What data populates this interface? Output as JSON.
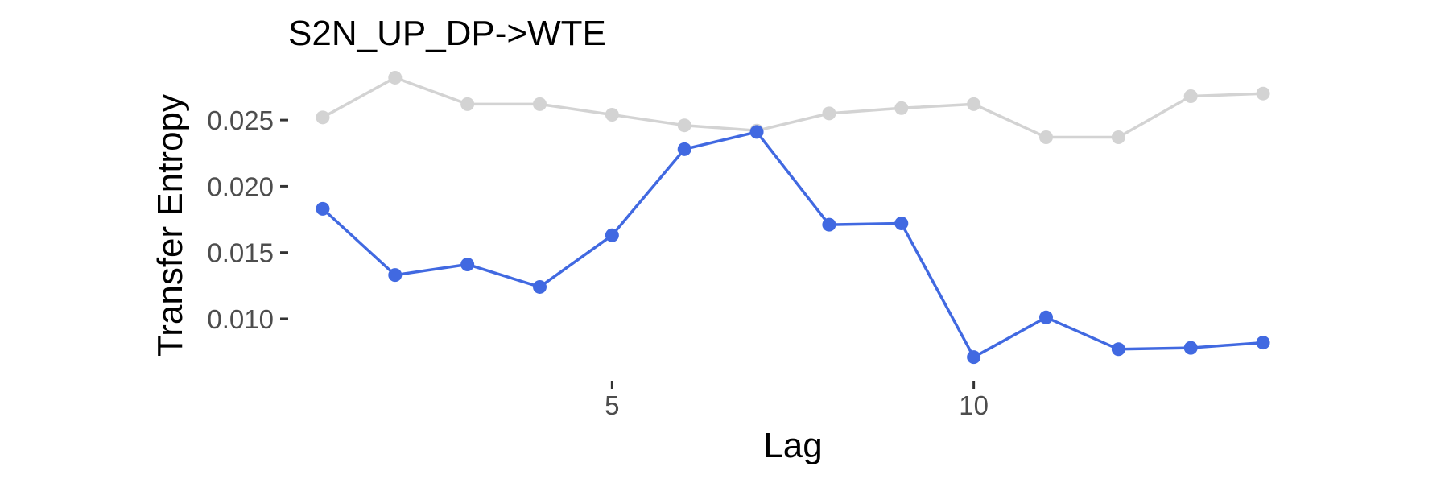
{
  "chart_data": {
    "type": "line",
    "title": "S2N_UP_DP->WTE",
    "xlabel": "Lag",
    "ylabel": "Transfer Entropy",
    "x": [
      1,
      2,
      3,
      4,
      5,
      6,
      7,
      8,
      9,
      10,
      11,
      12,
      13,
      14
    ],
    "xlim": [
      0.6,
      14.4
    ],
    "ylim": [
      0.0055,
      0.0292
    ],
    "x_ticks": [
      5,
      10
    ],
    "x_tick_labels": [
      "5",
      "10"
    ],
    "y_ticks": [
      0.01,
      0.015,
      0.02,
      0.025
    ],
    "y_tick_labels": [
      "0.010",
      "0.015",
      "0.020",
      "0.025"
    ],
    "grid": false,
    "legend": "none",
    "series": [
      {
        "color": "#d3d3d3",
        "values": [
          0.0252,
          0.0282,
          0.0262,
          0.0262,
          0.0254,
          0.0246,
          0.0242,
          0.0255,
          0.0259,
          0.0262,
          0.0237,
          0.0237,
          0.0268,
          0.027
        ]
      },
      {
        "color": "#4169e1",
        "values": [
          0.0183,
          0.0133,
          0.0141,
          0.0124,
          0.0163,
          0.0228,
          0.0241,
          0.0171,
          0.0172,
          0.0071,
          0.0101,
          0.0077,
          0.0078,
          0.0082
        ]
      }
    ]
  }
}
